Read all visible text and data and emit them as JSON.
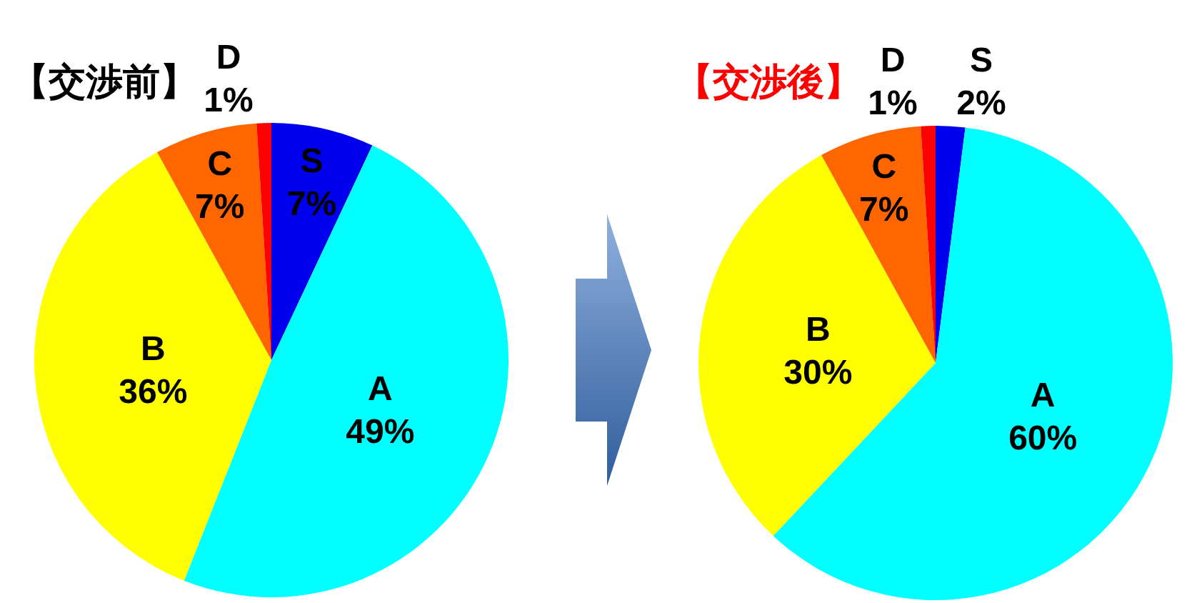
{
  "chart_data": [
    {
      "type": "pie",
      "title": "【交渉前】",
      "categories": [
        "S",
        "A",
        "B",
        "C",
        "D"
      ],
      "values": [
        7,
        49,
        36,
        7,
        1
      ],
      "colors": [
        "#0000ee",
        "#00ffff",
        "#ffff00",
        "#ff6600",
        "#ff0000"
      ],
      "value_labels": [
        "7%",
        "49%",
        "36%",
        "7%",
        "1%"
      ]
    },
    {
      "type": "pie",
      "title": "【交渉後】",
      "categories": [
        "S",
        "A",
        "B",
        "C",
        "D"
      ],
      "values": [
        2,
        60,
        30,
        7,
        1
      ],
      "colors": [
        "#0000ee",
        "#00ffff",
        "#ffff00",
        "#ff6600",
        "#ff0000"
      ],
      "value_labels": [
        "2%",
        "60%",
        "30%",
        "7%",
        "1%"
      ]
    }
  ]
}
